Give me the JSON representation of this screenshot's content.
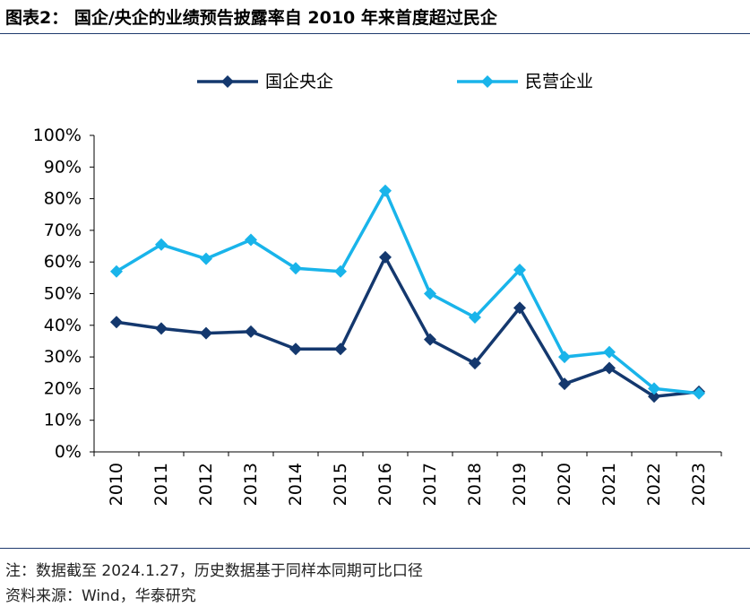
{
  "header": {
    "title": "图表2：  国企/央企的业绩预告披露率自 2010 年来首度超过民企"
  },
  "footer": {
    "note": "注：数据截至 2024.1.27，历史数据基于同样本同期可比口径",
    "source": "资料来源：Wind，华泰研究"
  },
  "chart_data": {
    "type": "line",
    "categories": [
      "2010",
      "2011",
      "2012",
      "2013",
      "2014",
      "2015",
      "2016",
      "2017",
      "2018",
      "2019",
      "2020",
      "2021",
      "2022",
      "2023"
    ],
    "series": [
      {
        "name": "国企央企",
        "color": "#14386e",
        "values": [
          41,
          39,
          37.5,
          38,
          32.5,
          32.5,
          61.5,
          35.5,
          28,
          45.5,
          21.5,
          26.5,
          17.5,
          19
        ]
      },
      {
        "name": "民营企业",
        "color": "#19b4ea",
        "values": [
          57,
          65.5,
          61,
          67,
          58,
          57,
          82.5,
          50,
          42.5,
          57.5,
          30,
          31.5,
          20,
          18.5
        ]
      }
    ],
    "yticks": [
      "0%",
      "10%",
      "20%",
      "30%",
      "40%",
      "50%",
      "60%",
      "70%",
      "80%",
      "90%",
      "100%"
    ],
    "ylim": [
      0,
      100
    ],
    "grid": false,
    "legend": "top-center"
  }
}
